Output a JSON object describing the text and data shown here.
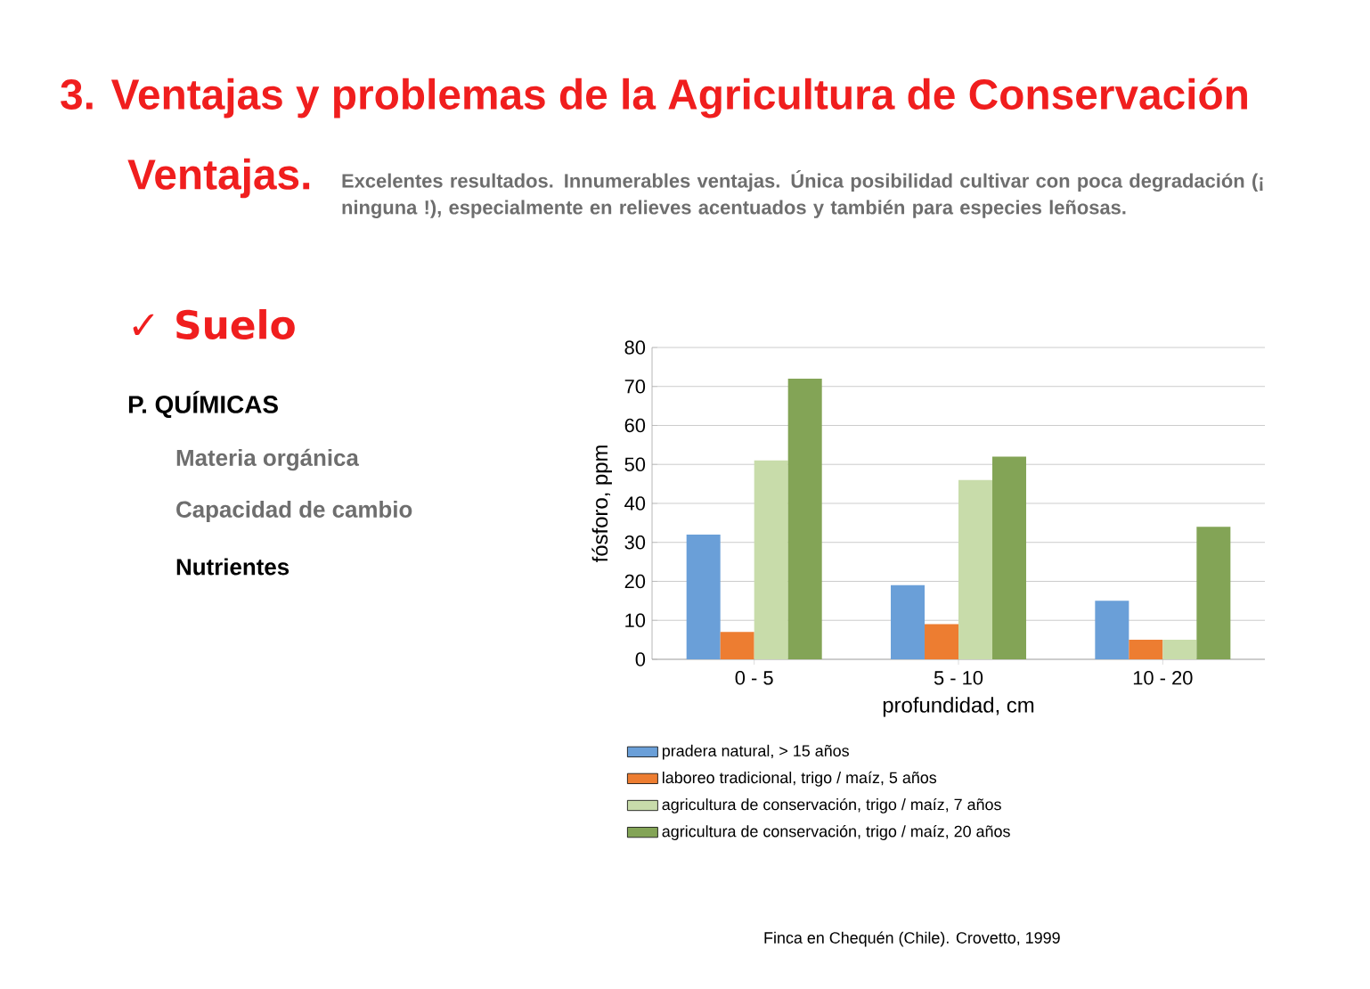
{
  "chart_data": {
    "type": "bar",
    "title": "3. Ventajas y problemas de la Agricultura de Conservación",
    "subtitle": "Ventajas.",
    "annotations": [
      "Excelentes resultados. Innumerables ventajas. Única posibilidad cultivar con poca degradación (¡ ninguna !), especialmente en relieves acentuados y también para especies leñosas.",
      "✓ Suelo",
      "P. QUÍMICAS",
      "Materia orgánica",
      "Capacidad de cambio",
      "Nutrientes",
      "Finca en Chequén (Chile). Crovetto, 1999"
    ],
    "xlabel": "profundidad,  cm",
    "ylabel": "fósforo,  ppm",
    "categories": [
      "0 - 5",
      "5 - 10",
      "10 - 20"
    ],
    "series": [
      {
        "name": "pradera natural, > 15 años",
        "color": "#6a9fd8",
        "values": [
          32,
          19,
          15
        ]
      },
      {
        "name": "laboreo tradicional, trigo / maíz, 5 años",
        "color": "#ed7d31",
        "values": [
          7,
          9,
          5
        ]
      },
      {
        "name": "agricultura de conservación, trigo / maíz, 7 años",
        "color": "#c8dcaa",
        "values": [
          51,
          46,
          5
        ]
      },
      {
        "name": "agricultura de conservación, trigo / maíz, 20 años",
        "color": "#83a456",
        "values": [
          72,
          52,
          34
        ]
      }
    ],
    "ylim": [
      0,
      80
    ],
    "yticks": [
      0,
      10,
      20,
      30,
      40,
      50,
      60,
      70,
      80
    ],
    "grid": "y",
    "legend": "bottom"
  }
}
